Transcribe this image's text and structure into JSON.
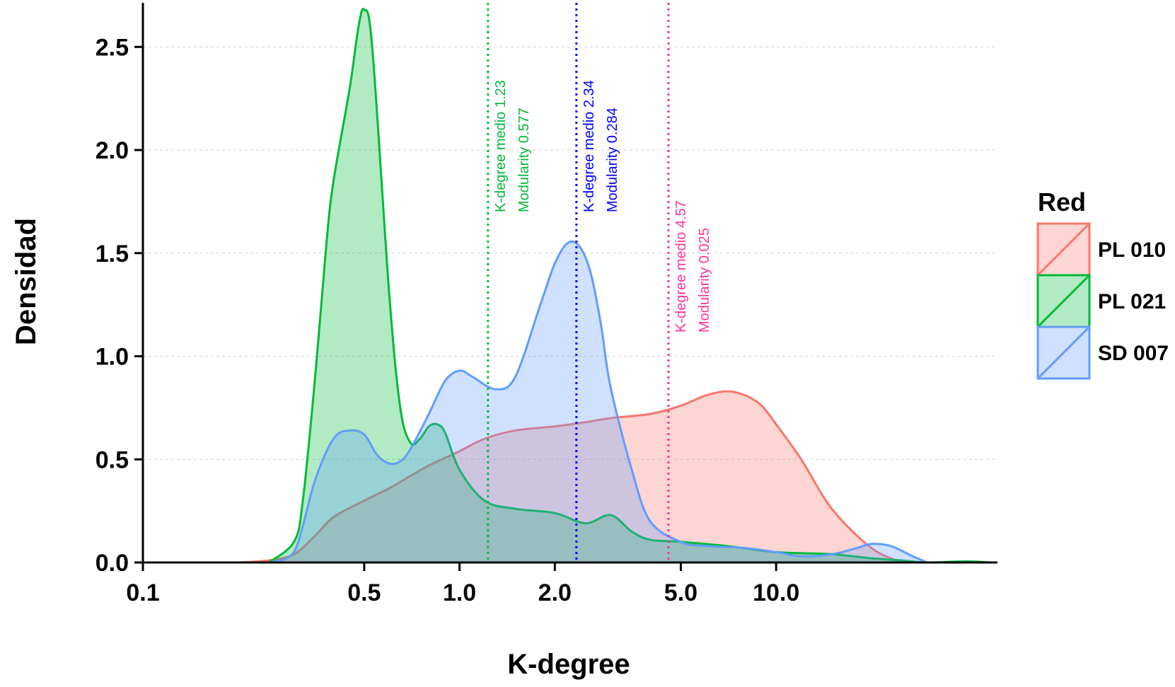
{
  "chart_data": {
    "type": "area",
    "xlabel": "K-degree",
    "ylabel": "Densidad",
    "x_scale": "log",
    "xlim": [
      0.1,
      50
    ],
    "ylim": [
      0,
      2.7
    ],
    "x_ticks": [
      0.1,
      0.5,
      1.0,
      2.0,
      5.0,
      10.0
    ],
    "x_tick_labels": [
      "0.1",
      "0.5",
      "1.0",
      "2.0",
      "5.0",
      "10.0"
    ],
    "y_ticks": [
      0.0,
      0.5,
      1.0,
      1.5,
      2.0,
      2.5
    ],
    "y_tick_labels": [
      "0.0",
      "0.5",
      "1.0",
      "1.5",
      "2.0",
      "2.5"
    ],
    "grid": "horizontal dashed",
    "legend": {
      "title": "Red",
      "placement": "right"
    },
    "series": [
      {
        "name": "PL 010",
        "color": "#F8766D",
        "x": [
          0.2,
          0.25,
          0.3,
          0.35,
          0.4,
          0.5,
          0.6,
          0.7,
          0.8,
          1.0,
          1.2,
          1.5,
          2.0,
          2.5,
          3.0,
          4.0,
          5.0,
          6.0,
          7.0,
          8.0,
          9.0,
          10.0,
          12.0,
          15.0,
          20.0,
          25.0
        ],
        "y": [
          0.0,
          0.01,
          0.04,
          0.13,
          0.22,
          0.3,
          0.36,
          0.42,
          0.47,
          0.54,
          0.6,
          0.64,
          0.66,
          0.68,
          0.7,
          0.72,
          0.76,
          0.81,
          0.83,
          0.81,
          0.76,
          0.67,
          0.5,
          0.26,
          0.07,
          0.0
        ]
      },
      {
        "name": "PL 021",
        "color": "#00BA38",
        "x": [
          0.25,
          0.3,
          0.32,
          0.35,
          0.38,
          0.4,
          0.45,
          0.48,
          0.5,
          0.53,
          0.6,
          0.65,
          0.7,
          0.75,
          0.8,
          0.85,
          0.9,
          1.0,
          1.2,
          1.5,
          2.0,
          2.5,
          3.0,
          3.5,
          4.0,
          5.0,
          7.0,
          10.0,
          15.0,
          20.0,
          25.0,
          30.0,
          40.0,
          48.0
        ],
        "y": [
          0.0,
          0.1,
          0.3,
          0.9,
          1.55,
          1.85,
          2.3,
          2.6,
          2.68,
          2.5,
          1.3,
          0.75,
          0.58,
          0.6,
          0.66,
          0.67,
          0.63,
          0.45,
          0.3,
          0.26,
          0.24,
          0.19,
          0.23,
          0.15,
          0.11,
          0.1,
          0.08,
          0.05,
          0.04,
          0.02,
          0.01,
          0.0,
          0.005,
          0.0
        ]
      },
      {
        "name": "SD 007",
        "color": "#619CFF",
        "x": [
          0.25,
          0.3,
          0.35,
          0.4,
          0.45,
          0.5,
          0.55,
          0.6,
          0.65,
          0.7,
          0.8,
          0.9,
          1.0,
          1.1,
          1.3,
          1.5,
          1.8,
          2.0,
          2.2,
          2.4,
          2.6,
          2.8,
          3.0,
          3.5,
          4.0,
          5.0,
          6.0,
          8.0,
          10.0,
          12.0,
          15.0,
          18.0,
          20.0,
          23.0,
          27.0,
          30.0
        ],
        "y": [
          0.0,
          0.05,
          0.4,
          0.6,
          0.64,
          0.62,
          0.52,
          0.48,
          0.49,
          0.55,
          0.72,
          0.88,
          0.93,
          0.9,
          0.84,
          0.9,
          1.25,
          1.45,
          1.55,
          1.53,
          1.4,
          1.15,
          0.85,
          0.45,
          0.2,
          0.1,
          0.08,
          0.07,
          0.05,
          0.03,
          0.04,
          0.07,
          0.09,
          0.08,
          0.03,
          0.0
        ]
      }
    ],
    "annotations": [
      {
        "x": 1.23,
        "color": "#00BA38",
        "lines": [
          "K-degree medio 1.23",
          "Modularity 0.577"
        ]
      },
      {
        "x": 2.34,
        "color": "#0000FF",
        "lines": [
          "K-degree medio 2.34",
          "Modularity 0.284"
        ]
      },
      {
        "x": 4.57,
        "color": "#FF3399",
        "lines": [
          "K-degree medio 4.57",
          "Modularity 0.025"
        ]
      }
    ]
  }
}
